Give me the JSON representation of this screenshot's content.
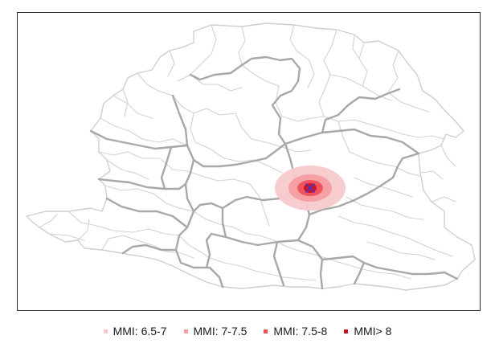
{
  "map": {
    "epicenter_marker": "x-mark-icon",
    "colors": {
      "admin_border_major": "#a6a6a6",
      "admin_border_minor": "#cfcfcf",
      "epicenter": "#3b3bd6"
    },
    "intensity_zones": [
      {
        "label": "MMI: 6.5-7",
        "color": "#f7c9cb"
      },
      {
        "label": "MMI: 7-7.5",
        "color": "#f59da2"
      },
      {
        "label": "MMI: 7.5-8",
        "color": "#f0505b"
      },
      {
        "label": "MMI> 8",
        "color": "#cc0f1e"
      }
    ]
  }
}
